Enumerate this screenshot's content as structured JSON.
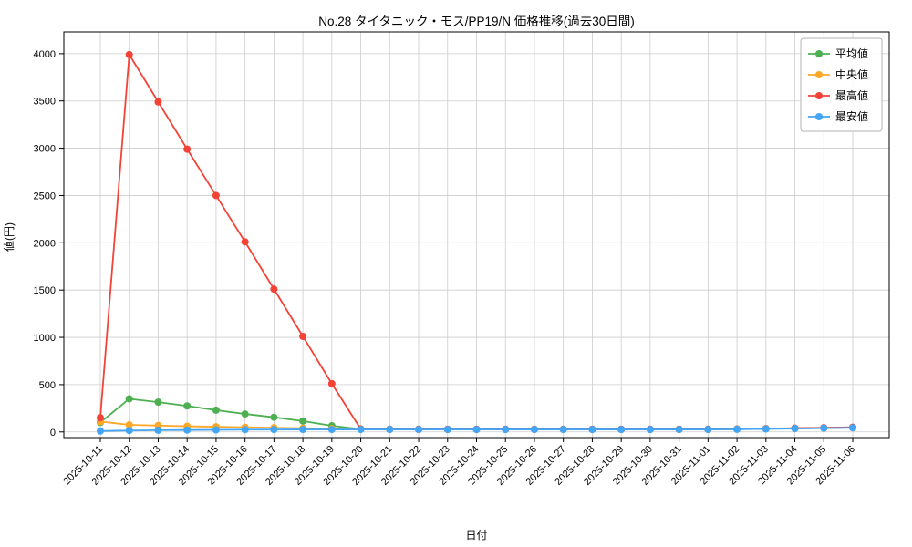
{
  "chart_data": {
    "type": "line",
    "title": "No.28 タイタニック・モス/PP19/N 価格推移(過去30日間)",
    "xlabel": "日付",
    "ylabel": "値(円)",
    "ylim": [
      0,
      4000
    ],
    "grid": true,
    "legend_position": "top-right",
    "yticks": [
      0,
      500,
      1000,
      1500,
      2000,
      2500,
      3000,
      3500,
      4000
    ],
    "categories": [
      "2025-10-11",
      "2025-10-12",
      "2025-10-13",
      "2025-10-14",
      "2025-10-15",
      "2025-10-16",
      "2025-10-17",
      "2025-10-18",
      "2025-10-19",
      "2025-10-20",
      "2025-10-21",
      "2025-10-22",
      "2025-10-23",
      "2025-10-24",
      "2025-10-25",
      "2025-10-26",
      "2025-10-27",
      "2025-10-28",
      "2025-10-29",
      "2025-10-30",
      "2025-10-31",
      "2025-11-01",
      "2025-11-02",
      "2025-11-03",
      "2025-11-04",
      "2025-11-05",
      "2025-11-06"
    ],
    "series": [
      {
        "name": "平均値",
        "color": "#4caf50",
        "values": [
          100,
          350,
          315,
          275,
          230,
          190,
          155,
          115,
          65,
          30,
          28,
          28,
          28,
          28,
          28,
          28,
          28,
          28,
          28,
          28,
          28,
          28,
          30,
          34,
          38,
          42,
          46
        ]
      },
      {
        "name": "中央値",
        "color": "#ffa726",
        "values": [
          110,
          75,
          68,
          60,
          55,
          50,
          45,
          40,
          35,
          30,
          28,
          28,
          28,
          28,
          28,
          28,
          28,
          28,
          28,
          28,
          28,
          28,
          30,
          34,
          38,
          42,
          46
        ]
      },
      {
        "name": "最高値",
        "color": "#f44336",
        "values": [
          150,
          3990,
          3490,
          2990,
          2500,
          2010,
          1510,
          1010,
          510,
          30,
          28,
          28,
          28,
          28,
          28,
          28,
          28,
          28,
          28,
          28,
          28,
          28,
          30,
          35,
          40,
          45,
          50
        ]
      },
      {
        "name": "最安値",
        "color": "#42a5f5",
        "values": [
          10,
          15,
          18,
          20,
          22,
          24,
          25,
          26,
          26,
          26,
          26,
          26,
          26,
          26,
          26,
          26,
          26,
          26,
          26,
          26,
          26,
          26,
          28,
          32,
          36,
          40,
          44
        ]
      }
    ],
    "grid_color": "#cccccc",
    "axis_color": "#000000"
  }
}
